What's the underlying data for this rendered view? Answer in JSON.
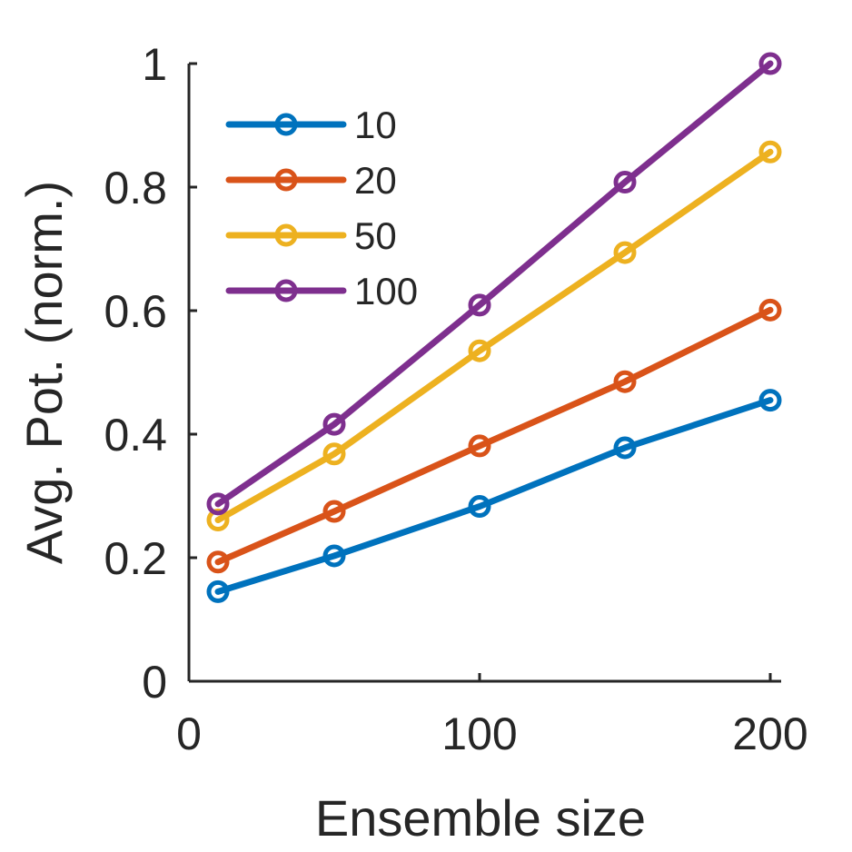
{
  "chart_data": {
    "type": "line",
    "title": "",
    "xlabel": "Ensemble size",
    "ylabel": "Avg. Pot. (norm.)",
    "xlim": [
      0,
      200
    ],
    "ylim": [
      0,
      1
    ],
    "xticks": [
      0,
      100,
      200
    ],
    "yticks": [
      0,
      0.2,
      0.4,
      0.6,
      0.8,
      1
    ],
    "xtick_labels": [
      "0",
      "100",
      "200"
    ],
    "ytick_labels": [
      "0",
      "0.2",
      "0.4",
      "0.6",
      "0.8",
      "1"
    ],
    "grid": false,
    "legend_position": "top-left",
    "x": [
      10,
      50,
      100,
      150,
      200
    ],
    "series": [
      {
        "name": "10",
        "color": "#0072BD",
        "values": [
          0.145,
          0.203,
          0.283,
          0.378,
          0.455
        ]
      },
      {
        "name": "20",
        "color": "#D95319",
        "values": [
          0.193,
          0.275,
          0.381,
          0.485,
          0.601
        ]
      },
      {
        "name": "50",
        "color": "#EDB120",
        "values": [
          0.261,
          0.368,
          0.535,
          0.694,
          0.857
        ]
      },
      {
        "name": "100",
        "color": "#7E2F8E",
        "values": [
          0.287,
          0.416,
          0.609,
          0.808,
          1.0
        ]
      }
    ]
  }
}
